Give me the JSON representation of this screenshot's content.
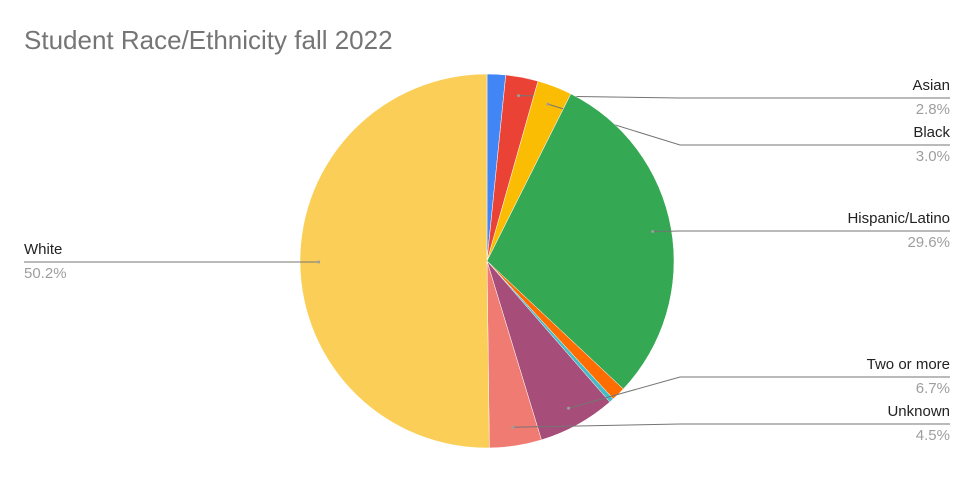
{
  "chart_data": {
    "type": "pie",
    "title": "Student Race/Ethnicity fall 2022",
    "categories": [
      null,
      "Asian",
      "Black",
      "Hispanic/Latino",
      null,
      null,
      "Two or more",
      "Unknown",
      "White"
    ],
    "values": [
      1.6,
      2.8,
      3.0,
      29.6,
      1.2,
      0.4,
      6.7,
      4.5,
      50.2
    ],
    "value_labels": [
      null,
      "2.8%",
      "3.0%",
      "29.6%",
      null,
      null,
      "6.7%",
      "4.5%",
      "50.2%"
    ],
    "colors": [
      "#4285f4",
      "#ea4335",
      "#fbbc04",
      "#34a853",
      "#ff6d01",
      "#46bdc6",
      "#a64d79",
      "#f07b72",
      "#fbcf57"
    ]
  }
}
